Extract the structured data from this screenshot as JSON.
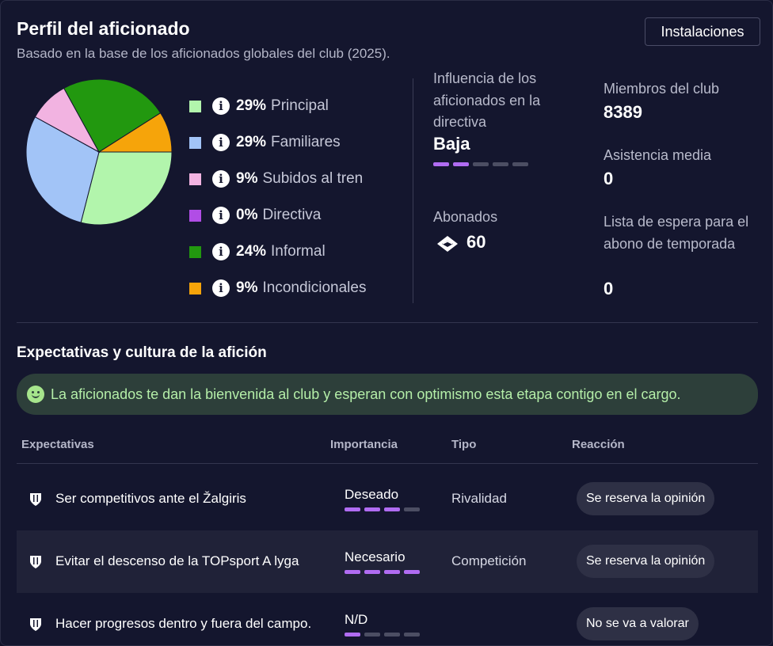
{
  "header": {
    "title": "Perfil del aficionado",
    "subtitle": "Basado en la base de los aficionados globales del club (2025).",
    "facilities_label": "Instalaciones"
  },
  "chart_data": {
    "type": "pie",
    "slices": [
      {
        "label": "Principal",
        "value": 29,
        "pct_text": "29%",
        "color": "#b2f5ac"
      },
      {
        "label": "Familiares",
        "value": 29,
        "pct_text": "29%",
        "color": "#a2c4f7"
      },
      {
        "label": "Subidos al tren",
        "value": 9,
        "pct_text": "9%",
        "color": "#f2b3e1"
      },
      {
        "label": "Directiva",
        "value": 0,
        "pct_text": "0%",
        "color": "#b14de6"
      },
      {
        "label": "Informal",
        "value": 24,
        "pct_text": "24%",
        "color": "#22980f"
      },
      {
        "label": "Incondicionales",
        "value": 9,
        "pct_text": "9%",
        "color": "#f6a40a"
      }
    ]
  },
  "stats": {
    "influence_label": "Influencia de los aficionados en la directiva",
    "influence_value": "Baja",
    "influence_level": 2,
    "influence_max": 5,
    "season_ticket_label": "Abonados",
    "season_ticket_value": "60",
    "members_label": "Miembros del club",
    "members_value": "8389",
    "attendance_label": "Asistencia media",
    "attendance_value": "0",
    "waiting_label": "Lista de espera para el abono de temporada",
    "waiting_value": "0"
  },
  "expectations": {
    "title": "Expectativas y cultura de la afición",
    "banner": "La aficionados te dan la bienvenida al club y esperan con optimismo esta etapa contigo en el cargo.",
    "headers": {
      "expectation": "Expectativas",
      "importance": "Importancia",
      "type": "Tipo",
      "reaction": "Reacción"
    },
    "rows": [
      {
        "text": "Ser competitivos ante el Žalgiris",
        "importance": "Deseado",
        "importance_level": 3,
        "type": "Rivalidad",
        "reaction": "Se reserva la opinión"
      },
      {
        "text": "Evitar el descenso de la TOPsport A lyga",
        "importance": "Necesario",
        "importance_level": 4,
        "type": "Competición",
        "reaction": "Se reserva la opinión"
      },
      {
        "text": "Hacer progresos dentro y fuera del campo.",
        "importance": "N/D",
        "importance_level": 1,
        "type": "",
        "reaction": "No se va a valorar"
      }
    ],
    "importance_max": 4
  },
  "colors": {
    "accent_purple": "#b06cf2",
    "banner_text": "#b4eea8"
  }
}
